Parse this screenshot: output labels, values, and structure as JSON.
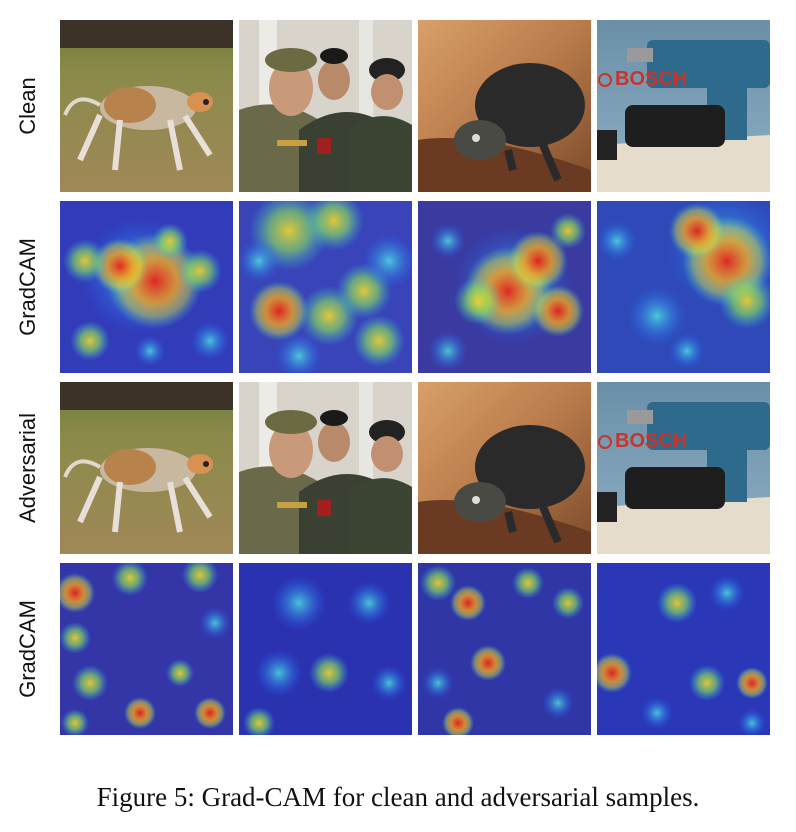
{
  "figure": {
    "row_labels": [
      "Clean",
      "GradCAM",
      "Adversarial",
      "GradCAM"
    ],
    "column_subjects": [
      "dog",
      "soldiers",
      "turtle",
      "drill"
    ],
    "drill_brand_text": "BOSCH",
    "caption": "Figure 5: Grad-CAM for clean and adversarial samples."
  }
}
